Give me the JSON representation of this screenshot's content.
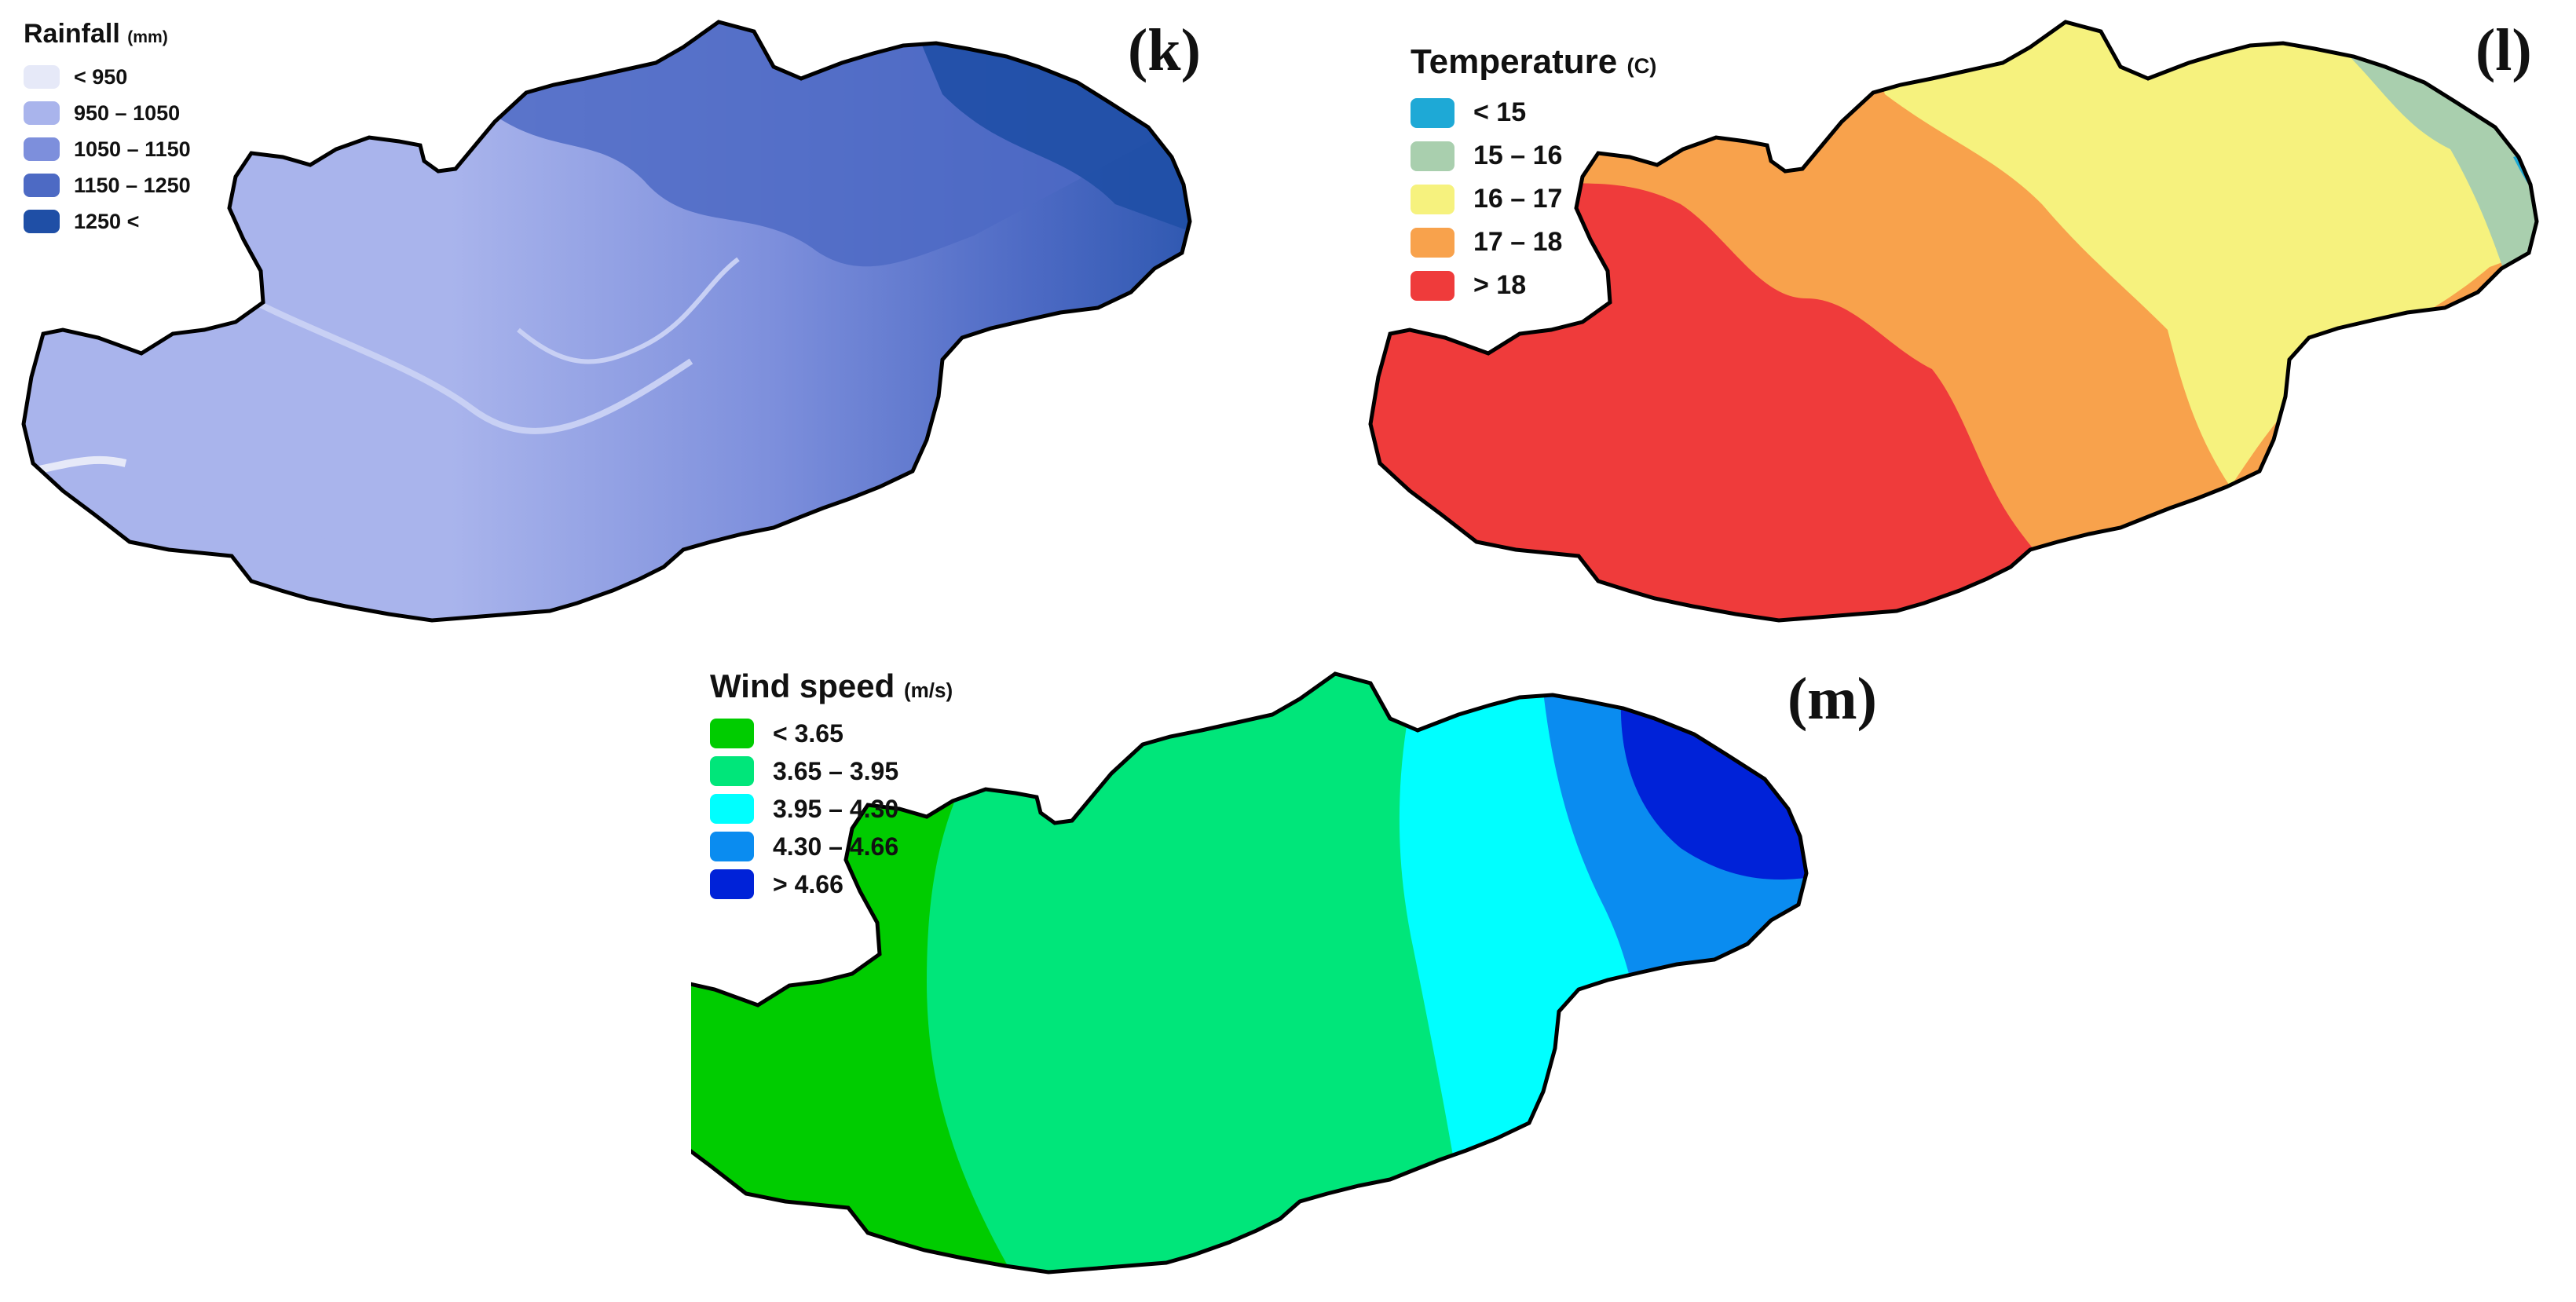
{
  "panels": [
    {
      "letter": "(k)",
      "legend": {
        "title": "Rainfall",
        "unit": "(mm)",
        "items": [
          {
            "label": "< 950",
            "color": "#e6e9f8"
          },
          {
            "label": "950 – 1050",
            "color": "#a9b4ec"
          },
          {
            "label": "1050  – 1150",
            "color": "#7d8fdc"
          },
          {
            "label": "1150  – 1250",
            "color": "#4d6ac4"
          },
          {
            "label": "1250 <",
            "color": "#1f4fa6"
          }
        ]
      }
    },
    {
      "letter": "(l)",
      "legend": {
        "title": "Temperature",
        "unit": "(C)",
        "items": [
          {
            "label": "< 15",
            "color": "#1ea9d6"
          },
          {
            "label": "15 – 16",
            "color": "#a9cfae"
          },
          {
            "label": "16 – 17",
            "color": "#f6f27e"
          },
          {
            "label": "17 – 18",
            "color": "#f8a24c"
          },
          {
            "label": "> 18",
            "color": "#ef3b3b"
          }
        ]
      }
    },
    {
      "letter": "(m)",
      "legend": {
        "title": "Wind speed",
        "unit": "(m/s)",
        "items": [
          {
            "label": "< 3.65",
            "color": "#00cc00"
          },
          {
            "label": "3.65 – 3.95",
            "color": "#00e67a"
          },
          {
            "label": "3.95 – 4.30",
            "color": "#00ffff"
          },
          {
            "label": "4.30 – 4.66",
            "color": "#0a8cf0"
          },
          {
            "label": "> 4.66",
            "color": "#0022d8"
          }
        ]
      }
    }
  ]
}
